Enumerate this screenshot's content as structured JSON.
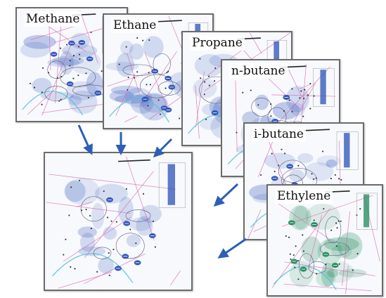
{
  "panels": [
    {
      "id": "methane",
      "label": "Methane",
      "color": "#2a50b8"
    },
    {
      "id": "ethane",
      "label": "Ethane",
      "color": "#2a50b8"
    },
    {
      "id": "propane",
      "label": "Propane",
      "color": "#2a50b8"
    },
    {
      "id": "n-butane",
      "label": "n-butane",
      "color": "#2a50b8"
    },
    {
      "id": "i-butane",
      "label": "i-butane",
      "color": "#2a50b8"
    },
    {
      "id": "ethylene",
      "label": "Ethylene",
      "color": "#1e8a5a"
    },
    {
      "id": "combined",
      "label": "",
      "color": "#2a50b8"
    }
  ],
  "arrow_color": "#2b5fb8"
}
